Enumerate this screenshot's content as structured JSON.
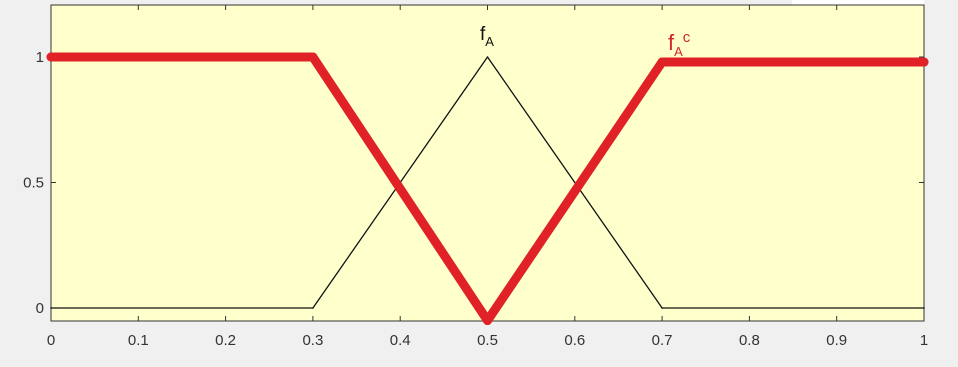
{
  "chart_data": {
    "type": "line",
    "xlim": [
      0,
      1
    ],
    "ylim": [
      -0.1,
      1.2
    ],
    "x_ticks": [
      "0",
      "0.1",
      "0.2",
      "0.3",
      "0.4",
      "0.5",
      "0.6",
      "0.7",
      "0.8",
      "0.9",
      "1"
    ],
    "y_ticks": [
      "0",
      "0.5",
      "1"
    ],
    "grid": false,
    "background_color": "#ffffcc",
    "series": [
      {
        "label_main": "f",
        "label_sub": "A",
        "color": "#111111",
        "x": [
          0,
          0.3,
          0.5,
          0.7,
          1
        ],
        "y": [
          0,
          0,
          1,
          0,
          0
        ]
      },
      {
        "label_main": "f",
        "label_sub": "A",
        "label_sup": "c",
        "color": "#e02226",
        "x": [
          0,
          0.3,
          0.5,
          0.7,
          1
        ],
        "y": [
          1,
          1,
          -0.05,
          0.98,
          0.98
        ]
      }
    ]
  }
}
